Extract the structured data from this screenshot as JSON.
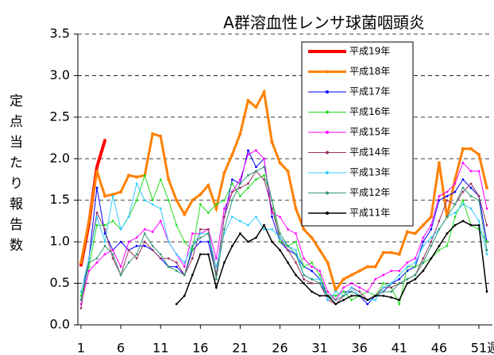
{
  "chart_data": {
    "type": "line",
    "title": "A群溶血性レンサ球菌咽頭炎",
    "y_label": "定点当たり報告数",
    "x_label": "週",
    "x": [
      1,
      2,
      3,
      4,
      5,
      6,
      7,
      8,
      9,
      10,
      11,
      12,
      13,
      14,
      15,
      16,
      17,
      18,
      19,
      20,
      21,
      22,
      23,
      24,
      25,
      26,
      27,
      28,
      29,
      30,
      31,
      32,
      33,
      34,
      35,
      36,
      37,
      38,
      39,
      40,
      41,
      42,
      43,
      44,
      45,
      46,
      47,
      48,
      49,
      50,
      51,
      52
    ],
    "xlim": [
      1,
      52
    ],
    "xticks": [
      1,
      6,
      11,
      16,
      21,
      26,
      31,
      36,
      41,
      46,
      51
    ],
    "ylim": [
      0,
      3.5
    ],
    "yticks": [
      {
        "value": 0,
        "label": "0.0"
      },
      {
        "value": 0.5,
        "label": "0.5"
      },
      {
        "value": 1,
        "label": "1.0"
      },
      {
        "value": 1.5,
        "label": "1.5"
      },
      {
        "value": 2,
        "label": "2.0"
      },
      {
        "value": 2.5,
        "label": "2.5"
      },
      {
        "value": 3,
        "label": "3.0"
      },
      {
        "value": 3.5,
        "label": "3.5"
      }
    ],
    "grid": true,
    "legend": "upper right",
    "series": [
      {
        "name": "平成19年",
        "color": "#ff0000",
        "width": 4,
        "values": [
          0.72,
          1.22,
          1.9,
          2.22,
          null,
          null,
          null,
          null,
          null,
          null,
          null,
          null,
          null,
          null,
          null,
          null,
          null,
          null,
          null,
          null,
          null,
          null,
          null,
          null,
          null,
          null,
          null,
          null,
          null,
          null,
          null,
          null,
          null,
          null,
          null,
          null,
          null,
          null,
          null,
          null,
          null,
          null,
          null,
          null,
          null,
          null,
          null,
          null,
          null,
          null,
          null,
          null
        ]
      },
      {
        "name": "平成18年",
        "color": "#ff8000",
        "width": 3,
        "values": [
          0.75,
          1.25,
          1.85,
          1.55,
          1.57,
          1.6,
          1.8,
          1.78,
          1.8,
          2.3,
          2.27,
          1.75,
          1.5,
          1.33,
          1.5,
          1.57,
          1.68,
          1.4,
          1.83,
          2.05,
          2.3,
          2.7,
          2.62,
          2.8,
          2.2,
          1.95,
          1.85,
          1.4,
          1.15,
          1.05,
          0.9,
          0.75,
          0.42,
          0.55,
          0.6,
          0.65,
          0.7,
          0.7,
          0.87,
          0.87,
          0.85,
          1.12,
          1.1,
          1.2,
          1.3,
          1.95,
          1.3,
          1.75,
          2.12,
          2.12,
          2.05,
          1.65
        ]
      },
      {
        "name": "平成17年",
        "color": "#0000ff",
        "width": 1,
        "values": [
          0.3,
          0.8,
          1.65,
          1.1,
          0.9,
          1.0,
          0.9,
          0.95,
          0.95,
          0.9,
          0.8,
          0.7,
          0.7,
          0.6,
          0.9,
          1.0,
          1.0,
          0.6,
          1.3,
          1.75,
          1.7,
          2.1,
          1.9,
          2.0,
          1.3,
          1.0,
          0.9,
          0.85,
          0.7,
          0.65,
          0.55,
          0.35,
          0.35,
          0.4,
          0.4,
          0.35,
          0.25,
          0.35,
          0.4,
          0.5,
          0.55,
          0.65,
          0.7,
          1.0,
          1.15,
          1.5,
          1.55,
          1.6,
          1.75,
          1.65,
          1.55,
          1.0
        ]
      },
      {
        "name": "平成16年",
        "color": "#22dd22",
        "width": 1,
        "values": [
          0.35,
          0.7,
          1.2,
          1.2,
          1.25,
          1.15,
          1.3,
          1.5,
          1.8,
          1.5,
          1.75,
          1.5,
          1.2,
          1.0,
          0.9,
          1.45,
          1.35,
          1.45,
          1.5,
          1.7,
          1.55,
          1.65,
          1.75,
          1.8,
          1.5,
          1.0,
          0.95,
          1.0,
          0.7,
          0.75,
          0.6,
          0.35,
          0.35,
          0.4,
          0.3,
          0.35,
          0.4,
          0.35,
          0.5,
          0.45,
          0.25,
          0.7,
          0.7,
          0.75,
          0.8,
          0.9,
          0.95,
          1.3,
          1.5,
          1.2,
          1.15,
          1.0
        ]
      },
      {
        "name": "平成15年",
        "color": "#ff00ff",
        "width": 1,
        "values": [
          0.25,
          0.65,
          0.75,
          0.85,
          0.9,
          0.7,
          1.0,
          1.05,
          1.15,
          1.12,
          1.25,
          1.0,
          0.85,
          0.7,
          1.1,
          1.1,
          1.15,
          0.8,
          1.4,
          1.6,
          1.75,
          2.05,
          2.1,
          2.0,
          1.35,
          1.3,
          1.15,
          1.1,
          0.8,
          0.7,
          0.65,
          0.4,
          0.3,
          0.45,
          0.5,
          0.45,
          0.4,
          0.55,
          0.6,
          0.65,
          0.65,
          0.75,
          0.8,
          1.05,
          1.2,
          1.55,
          1.6,
          1.7,
          1.95,
          1.85,
          1.85,
          1.4
        ]
      },
      {
        "name": "平成14年",
        "color": "#993366",
        "width": 1,
        "values": [
          0.2,
          0.8,
          1.35,
          1.15,
          0.8,
          0.6,
          0.9,
          0.8,
          1.0,
          0.9,
          0.8,
          0.8,
          0.75,
          0.6,
          0.8,
          1.15,
          1.15,
          0.6,
          1.3,
          1.6,
          1.65,
          1.7,
          1.85,
          1.75,
          1.4,
          1.05,
          0.9,
          0.75,
          0.55,
          0.5,
          0.5,
          0.3,
          0.25,
          0.35,
          0.45,
          0.4,
          0.3,
          0.35,
          0.45,
          0.45,
          0.5,
          0.55,
          0.6,
          0.8,
          1.0,
          1.25,
          1.5,
          1.45,
          1.6,
          1.7,
          1.55,
          1.2
        ]
      },
      {
        "name": "平成13年",
        "color": "#33ccff",
        "width": 1,
        "values": [
          0.4,
          0.8,
          1.3,
          1.0,
          1.55,
          1.15,
          1.3,
          1.7,
          1.5,
          1.45,
          1.4,
          1.0,
          0.85,
          0.75,
          0.95,
          1.1,
          1.1,
          0.7,
          1.1,
          1.3,
          1.25,
          1.2,
          1.3,
          1.15,
          1.15,
          1.05,
          0.95,
          0.9,
          0.6,
          0.55,
          0.55,
          0.3,
          0.4,
          0.35,
          0.45,
          0.35,
          0.3,
          0.3,
          0.45,
          0.5,
          0.6,
          0.7,
          0.75,
          0.95,
          1.05,
          1.15,
          1.3,
          1.35,
          1.45,
          1.4,
          1.25,
          0.85
        ]
      },
      {
        "name": "平成12年",
        "color": "#339977",
        "width": 1,
        "values": [
          0.3,
          0.75,
          0.8,
          0.95,
          0.85,
          0.6,
          0.75,
          0.85,
          1.1,
          0.95,
          0.85,
          0.7,
          0.65,
          0.6,
          0.95,
          1.05,
          1.1,
          0.55,
          1.15,
          1.5,
          1.7,
          1.8,
          1.85,
          1.9,
          1.5,
          1.1,
          0.95,
          0.85,
          0.6,
          0.55,
          0.5,
          0.35,
          0.3,
          0.35,
          0.4,
          0.35,
          0.3,
          0.35,
          0.4,
          0.4,
          0.5,
          0.55,
          0.6,
          0.75,
          0.95,
          1.15,
          1.3,
          1.45,
          1.65,
          1.55,
          1.5,
          0.9
        ]
      },
      {
        "name": "平成11年",
        "color": "#000000",
        "width": 1.5,
        "values": [
          null,
          null,
          null,
          null,
          null,
          null,
          null,
          null,
          null,
          null,
          null,
          null,
          0.25,
          0.35,
          0.6,
          0.85,
          0.85,
          0.45,
          0.75,
          0.95,
          1.1,
          1.0,
          1.05,
          1.2,
          1.0,
          0.9,
          0.75,
          0.6,
          0.5,
          0.4,
          0.35,
          0.35,
          0.25,
          0.3,
          0.35,
          0.35,
          0.3,
          0.35,
          0.35,
          0.33,
          0.3,
          0.5,
          0.55,
          0.65,
          0.8,
          0.95,
          1.1,
          1.2,
          1.25,
          1.2,
          1.2,
          0.4
        ]
      }
    ]
  }
}
